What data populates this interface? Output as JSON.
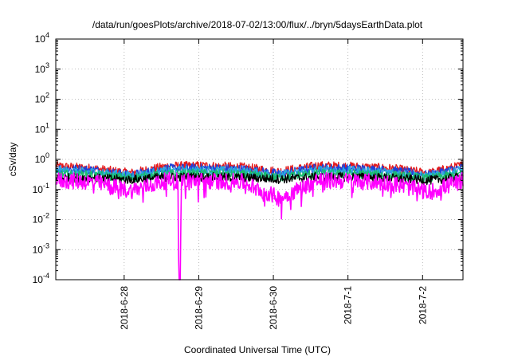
{
  "chart_data": {
    "type": "line",
    "title": "/data/run/goesPlots/archive/2018-07-02/13:00/flux/../bryn/5daysEarthData.plot",
    "xlabel": "Coordinated Universal Time (UTC)",
    "ylabel": "cSv/day",
    "yscale": "log",
    "ylim": [
      0.0001,
      10000
    ],
    "y_ticks": [
      {
        "base": "10",
        "exp": "-4"
      },
      {
        "base": "10",
        "exp": "-3"
      },
      {
        "base": "10",
        "exp": "-2"
      },
      {
        "base": "10",
        "exp": "-1"
      },
      {
        "base": "10",
        "exp": "0"
      },
      {
        "base": "10",
        "exp": "1"
      },
      {
        "base": "10",
        "exp": "2"
      },
      {
        "base": "10",
        "exp": "3"
      },
      {
        "base": "10",
        "exp": "4"
      }
    ],
    "xlim": [
      "2018-06-27 02:00",
      "2018-07-02 13:00"
    ],
    "x_ticks": [
      "2018-6-28",
      "2018-6-29",
      "2018-6-30",
      "2018-7-1",
      "2018-7-2"
    ],
    "grid": true,
    "series": [
      {
        "color": "#e41a1c",
        "x_days": [
          0,
          0.5,
          1,
          1.5,
          2,
          2.5,
          3,
          3.5,
          4,
          4.5,
          5,
          5.46
        ],
        "values": [
          0.6,
          0.5,
          0.35,
          0.6,
          0.62,
          0.55,
          0.4,
          0.62,
          0.58,
          0.5,
          0.35,
          0.65
        ]
      },
      {
        "color": "#1f3fd9",
        "x_days": [
          0,
          0.5,
          1,
          1.5,
          2,
          2.5,
          3,
          3.5,
          4,
          4.5,
          5,
          5.46
        ],
        "values": [
          0.5,
          0.45,
          0.3,
          0.5,
          0.52,
          0.47,
          0.33,
          0.52,
          0.5,
          0.43,
          0.3,
          0.55
        ]
      },
      {
        "color": "#2aa8e0",
        "x_days": [
          0,
          0.5,
          1,
          1.5,
          2,
          2.5,
          3,
          3.5,
          4,
          4.5,
          5,
          5.46
        ],
        "values": [
          0.42,
          0.38,
          0.28,
          0.42,
          0.44,
          0.4,
          0.3,
          0.44,
          0.42,
          0.37,
          0.27,
          0.45
        ]
      },
      {
        "color": "#1abc6c",
        "x_days": [
          0,
          0.5,
          1,
          1.5,
          2,
          2.5,
          3,
          3.5,
          4,
          4.5,
          5,
          5.46
        ],
        "values": [
          0.32,
          0.3,
          0.24,
          0.33,
          0.34,
          0.31,
          0.25,
          0.34,
          0.33,
          0.3,
          0.23,
          0.34
        ]
      },
      {
        "color": "#000000",
        "x_days": [
          0,
          0.5,
          1,
          1.5,
          2,
          2.5,
          3,
          3.5,
          4,
          4.5,
          5,
          5.46
        ],
        "values": [
          0.25,
          0.24,
          0.21,
          0.26,
          0.26,
          0.25,
          0.22,
          0.26,
          0.26,
          0.24,
          0.2,
          0.26
        ]
      },
      {
        "color": "#ff00ff",
        "x_days": [
          0,
          0.5,
          1,
          1.5,
          1.64,
          1.65,
          1.67,
          1.68,
          2,
          2.5,
          3,
          3.5,
          4,
          4.5,
          5,
          5.46
        ],
        "values": [
          0.2,
          0.18,
          0.09,
          0.2,
          0.2,
          0.0001,
          0.0001,
          0.2,
          0.19,
          0.18,
          0.05,
          0.2,
          0.19,
          0.16,
          0.08,
          0.2
        ]
      }
    ]
  }
}
